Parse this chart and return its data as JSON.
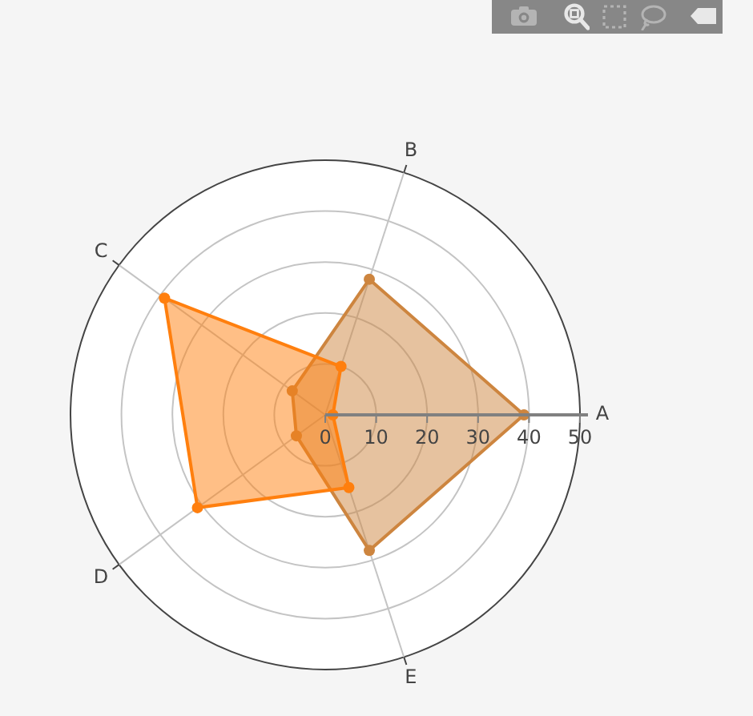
{
  "chart_data": {
    "type": "radar",
    "categories": [
      "B",
      "A",
      "E",
      "D",
      "C"
    ],
    "series": [
      {
        "color": "#cd853f",
        "values": [
          28,
          39,
          28,
          7,
          8
        ]
      },
      {
        "color": "#ff7f0e",
        "values": [
          10,
          1.5,
          15,
          31,
          39
        ]
      }
    ],
    "ylim": [
      0,
      50
    ],
    "yticks": [
      0,
      10,
      20,
      30,
      40,
      50
    ],
    "grid": true,
    "marker": "circle",
    "line_style": "solid"
  }
}
